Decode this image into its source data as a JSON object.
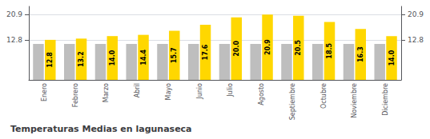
{
  "chart_data": {
    "type": "bar",
    "title": "Temperaturas Medias en lagunaseca",
    "categories": [
      "Enero",
      "Febrero",
      "Marzo",
      "Abril",
      "Mayo",
      "Junio",
      "Julio",
      "Agosto",
      "Septiembre",
      "Octubre",
      "Noviembre",
      "Diciembre"
    ],
    "series": [
      {
        "color": "#BEBEBE",
        "values": [
          11.5,
          11.5,
          11.5,
          11.5,
          11.5,
          11.5,
          11.5,
          11.5,
          11.5,
          11.5,
          11.5,
          11.5
        ]
      },
      {
        "color": "#FFD700",
        "values": [
          12.8,
          13.2,
          14.0,
          14.4,
          15.7,
          17.6,
          20.0,
          20.9,
          20.5,
          18.5,
          16.3,
          14.0
        ],
        "data_labels": true,
        "value_labels": [
          "12.8",
          "13.2",
          "14.0",
          "14.4",
          "15.7",
          "17.6",
          "20.0",
          "20.9",
          "20.5",
          "18.5",
          "16.3",
          "14.0"
        ]
      }
    ],
    "ylim": [
      0,
      23.5
    ],
    "yticks": [
      12.8,
      20.9
    ],
    "y2lim": [
      0,
      23.5
    ],
    "y2ticks": [
      12.8,
      20.9
    ],
    "grid": true
  }
}
